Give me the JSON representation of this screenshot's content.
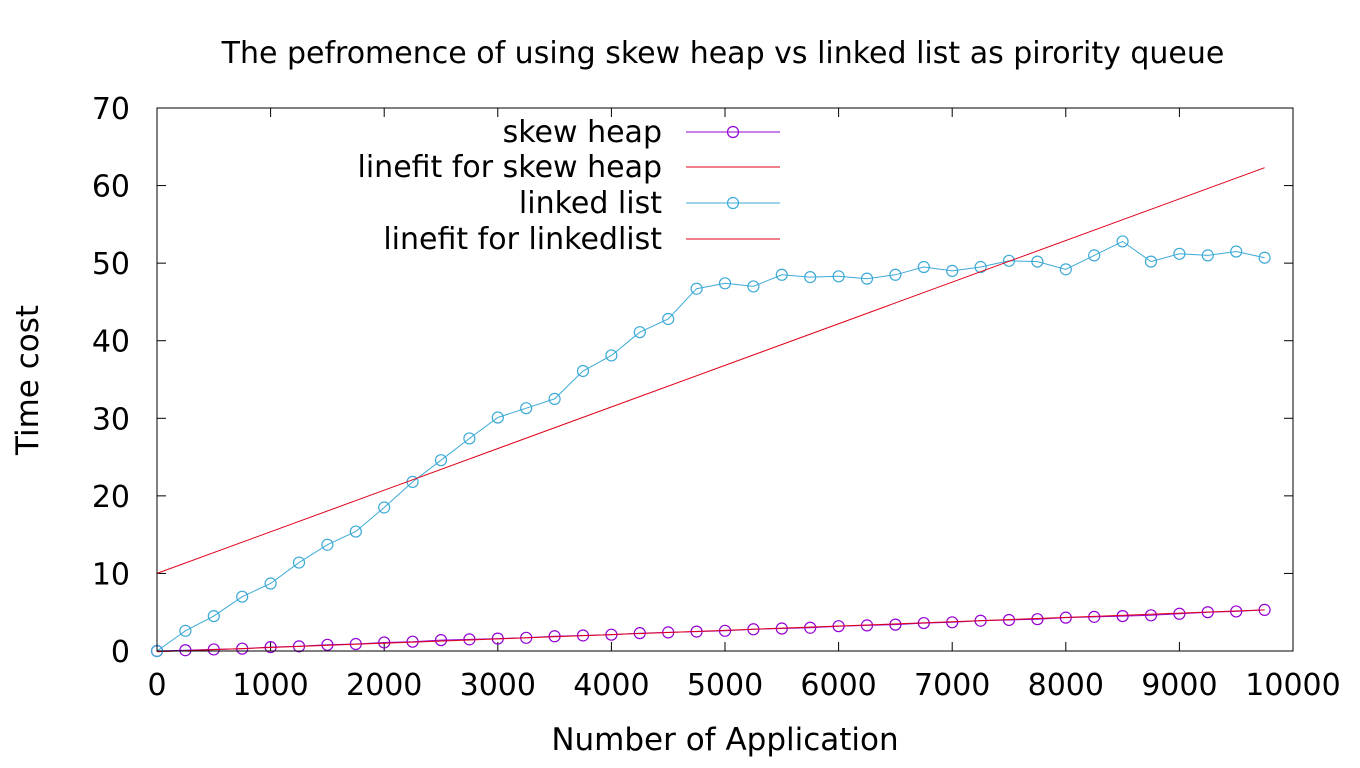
{
  "chart_data": {
    "type": "line",
    "title": "The pefromence of using skew heap vs linked list as pirority queue",
    "xlabel": "Number of Application",
    "ylabel": "Time cost",
    "xlim": [
      0,
      10000
    ],
    "ylim": [
      0,
      70
    ],
    "x_ticks": [
      "0",
      "1000",
      "2000",
      "3000",
      "4000",
      "5000",
      "6000",
      "7000",
      "8000",
      "9000",
      "10000"
    ],
    "y_ticks": [
      "0",
      "10",
      "20",
      "30",
      "40",
      "50",
      "60",
      "70"
    ],
    "legend_position": "top-center",
    "x": [
      0,
      250,
      500,
      750,
      1000,
      1250,
      1500,
      1750,
      2000,
      2250,
      2500,
      2750,
      3000,
      3250,
      3500,
      3750,
      4000,
      4250,
      4500,
      4750,
      5000,
      5250,
      5500,
      5750,
      6000,
      6250,
      6500,
      6750,
      7000,
      7250,
      7500,
      7750,
      8000,
      8250,
      8500,
      8750,
      9000,
      9250,
      9500,
      9750
    ],
    "series": [
      {
        "name": "skew heap",
        "color": "#9400d3",
        "marker": "circle",
        "values": [
          0.0,
          0.1,
          0.2,
          0.3,
          0.5,
          0.6,
          0.8,
          0.9,
          1.1,
          1.2,
          1.4,
          1.5,
          1.6,
          1.7,
          1.9,
          2.0,
          2.1,
          2.3,
          2.4,
          2.5,
          2.6,
          2.8,
          2.9,
          3.0,
          3.2,
          3.3,
          3.4,
          3.6,
          3.7,
          3.9,
          4.0,
          4.1,
          4.3,
          4.4,
          4.5,
          4.6,
          4.8,
          5.0,
          5.1,
          5.3
        ]
      },
      {
        "name": "linefit for skew heap",
        "color": "#e0001a",
        "marker": "none",
        "x": [
          0,
          9750
        ],
        "values": [
          -0.1,
          5.3
        ]
      },
      {
        "name": "linked list",
        "color": "#3caad7",
        "marker": "circle",
        "values": [
          0.0,
          2.6,
          4.5,
          7.0,
          8.7,
          11.4,
          13.7,
          15.4,
          18.5,
          21.8,
          24.6,
          27.4,
          30.1,
          31.3,
          32.5,
          36.1,
          38.1,
          41.1,
          42.8,
          46.7,
          47.4,
          47.0,
          48.5,
          48.2,
          48.3,
          48.0,
          48.5,
          49.5,
          49.0,
          49.5,
          50.3,
          50.2,
          49.2,
          51.0,
          52.8,
          50.2,
          51.2,
          51.0,
          51.5,
          50.7
        ]
      },
      {
        "name": "linefit for linkedlist",
        "color": "#e0001a",
        "marker": "none",
        "x": [
          0,
          9750
        ],
        "values": [
          10.0,
          62.3
        ]
      }
    ]
  }
}
